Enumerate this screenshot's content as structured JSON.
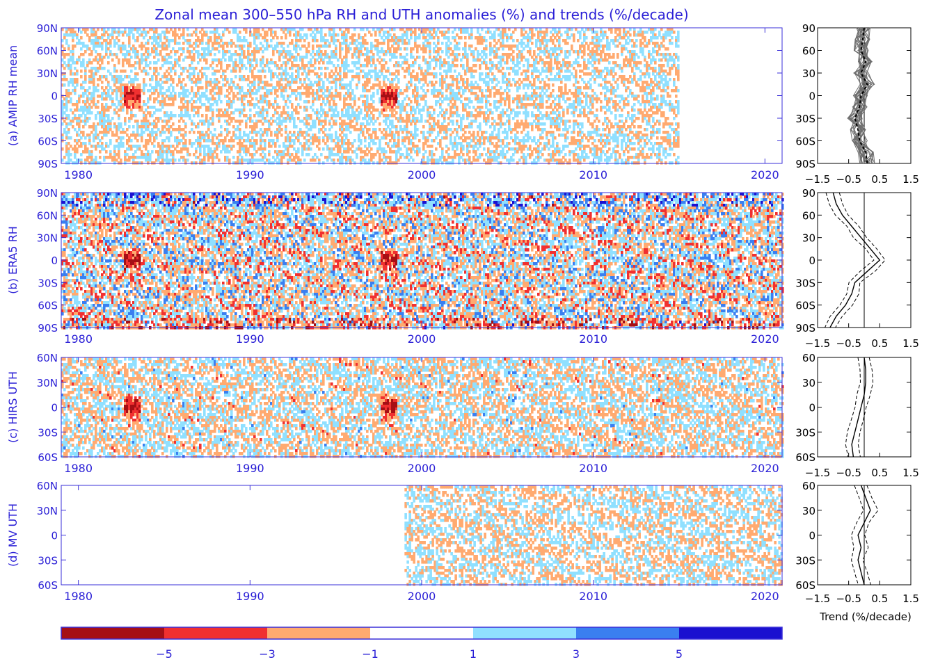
{
  "title": "Zonal mean 300–550 hPa RH and UTH anomalies (%) and trends (%/decade)",
  "colors": {
    "text": "#2a1fd6",
    "frame": "#3a2fd8",
    "levels": [
      "#a50f15",
      "#f03030",
      "#ffaa70",
      "#ffffff",
      "#90e0ff",
      "#3a7ff0",
      "#1a10d0"
    ]
  },
  "chart_data": [
    {
      "type": "heatmap",
      "panel_label": "(a) AMIP RH mean",
      "x_ticks": [
        "1980",
        "1990",
        "2000",
        "2010",
        "2020"
      ],
      "x_range": [
        1979,
        2021
      ],
      "y_ticks": [
        "90N",
        "60N",
        "30N",
        "0",
        "30S",
        "60S",
        "90S"
      ],
      "y_range": [
        -90,
        90
      ],
      "data_start_year": 1979,
      "data_end_year": 2014.9,
      "trend_profile": {
        "xlabel": "",
        "x_ticks": [
          "−1.5",
          "−0.5",
          "0.5",
          "1.5"
        ],
        "x_range": [
          -1.5,
          1.5
        ],
        "y_ticks": [
          "90",
          "60",
          "30",
          "0",
          "30S",
          "60S",
          "90S"
        ],
        "style": "ensemble",
        "lat": [
          90,
          75,
          60,
          45,
          30,
          15,
          0,
          -15,
          -30,
          -45,
          -60,
          -75,
          -90
        ],
        "trend": [
          0.0,
          -0.05,
          -0.1,
          0.05,
          -0.1,
          0.1,
          -0.1,
          -0.15,
          -0.3,
          -0.2,
          -0.15,
          0.05,
          0.1
        ]
      }
    },
    {
      "type": "heatmap",
      "panel_label": "(b) ERA5 RH",
      "x_ticks": [
        "1980",
        "1990",
        "2000",
        "2010",
        "2020"
      ],
      "x_range": [
        1979,
        2021
      ],
      "y_ticks": [
        "90N",
        "60N",
        "30N",
        "0",
        "30S",
        "60S",
        "90S"
      ],
      "y_range": [
        -90,
        90
      ],
      "data_start_year": 1979,
      "data_end_year": 2021,
      "trend_profile": {
        "xlabel": "",
        "x_ticks": [
          "−1.5",
          "−0.5",
          "0.5",
          "1.5"
        ],
        "x_range": [
          -1.5,
          1.5
        ],
        "y_ticks": [
          "90",
          "60",
          "30",
          "0",
          "30S",
          "60S",
          "90S"
        ],
        "style": "mean_with_bounds",
        "lat": [
          90,
          75,
          60,
          45,
          30,
          15,
          0,
          -15,
          -30,
          -45,
          -60,
          -75,
          -90
        ],
        "trend": [
          -1.0,
          -0.9,
          -0.7,
          -0.4,
          -0.1,
          0.2,
          0.5,
          0.1,
          -0.3,
          -0.4,
          -0.6,
          -0.9,
          -1.1
        ]
      }
    },
    {
      "type": "heatmap",
      "panel_label": "(c) HIRS UTH",
      "x_ticks": [
        "1980",
        "1990",
        "2000",
        "2010",
        "2020"
      ],
      "x_range": [
        1979,
        2021
      ],
      "y_ticks": [
        "60N",
        "30N",
        "0",
        "30S",
        "60S"
      ],
      "y_range": [
        -60,
        60
      ],
      "data_start_year": 1979,
      "data_end_year": 2021,
      "trend_profile": {
        "xlabel": "",
        "x_ticks": [
          "−1.5",
          "−0.5",
          "0.5",
          "1.5"
        ],
        "x_range": [
          -1.5,
          1.5
        ],
        "y_ticks": [
          "60",
          "30",
          "0",
          "30S",
          "60S"
        ],
        "style": "mean_with_bounds",
        "lat": [
          60,
          45,
          30,
          15,
          0,
          -15,
          -30,
          -45,
          -60
        ],
        "trend": [
          0.0,
          0.05,
          0.05,
          0.0,
          -0.1,
          -0.2,
          -0.3,
          -0.4,
          -0.35
        ]
      }
    },
    {
      "type": "heatmap",
      "panel_label": "(d) MV UTH",
      "x_ticks": [
        "1980",
        "1990",
        "2000",
        "2010",
        "2020"
      ],
      "x_range": [
        1979,
        2021
      ],
      "y_ticks": [
        "60N",
        "30N",
        "0",
        "30S",
        "60S"
      ],
      "y_range": [
        -60,
        60
      ],
      "data_start_year": 1999,
      "data_end_year": 2021,
      "trend_profile": {
        "xlabel": "Trend (%/decade)",
        "x_ticks": [
          "−1.5",
          "−0.5",
          "0.5",
          "1.5"
        ],
        "x_range": [
          -1.5,
          1.5
        ],
        "y_ticks": [
          "60",
          "30",
          "0",
          "30S",
          "60S"
        ],
        "style": "mean_with_bounds",
        "lat": [
          60,
          45,
          30,
          15,
          0,
          -15,
          -30,
          -45,
          -60
        ],
        "trend": [
          -0.1,
          0.05,
          0.2,
          0.0,
          -0.2,
          -0.1,
          -0.2,
          -0.1,
          0.0
        ]
      }
    }
  ],
  "colorbar": {
    "labels": [
      "−5",
      "−3",
      "−1",
      "1",
      "3",
      "5"
    ]
  }
}
